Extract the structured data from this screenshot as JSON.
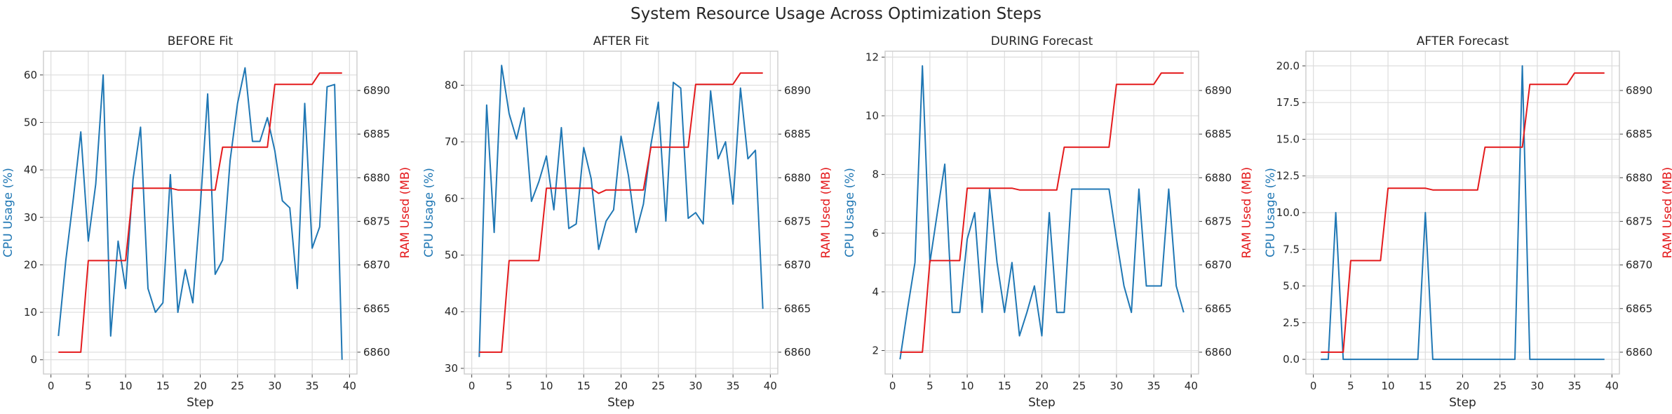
{
  "figure": {
    "title": "System Resource Usage Across Optimization Steps",
    "cpu_color": "#1f77b4",
    "ram_color": "#e41a1c"
  },
  "chart_data": [
    {
      "type": "line",
      "title": "BEFORE Fit",
      "xlabel": "Step",
      "ylabel": "CPU Usage (%)",
      "y2label": "RAM Used (MB)",
      "x": [
        1,
        2,
        3,
        4,
        5,
        6,
        7,
        8,
        9,
        10,
        11,
        12,
        13,
        14,
        15,
        16,
        17,
        18,
        19,
        20,
        21,
        22,
        23,
        24,
        25,
        26,
        27,
        28,
        29,
        30,
        31,
        32,
        33,
        34,
        35,
        36,
        37,
        38,
        39
      ],
      "xlim": [
        -1,
        41
      ],
      "ylim": [
        -3,
        65
      ],
      "y2lim": [
        6857.5,
        6894.5
      ],
      "xticks": [
        0,
        5,
        10,
        15,
        20,
        25,
        30,
        35,
        40
      ],
      "yticks": [
        0,
        10,
        20,
        30,
        40,
        50,
        60
      ],
      "y2ticks": [
        6860,
        6865,
        6870,
        6875,
        6880,
        6885,
        6890
      ],
      "grid": true,
      "series": [
        {
          "axis": "left",
          "color": "#1f77b4",
          "values": [
            5,
            21,
            34,
            48,
            25,
            37,
            60,
            5,
            25,
            15,
            38,
            49,
            15,
            10,
            12,
            39,
            10,
            19,
            12,
            32,
            56,
            18,
            21,
            42,
            54,
            61.5,
            46,
            46,
            51,
            44,
            33.5,
            32,
            15,
            54,
            23.5,
            28,
            57.5,
            58,
            0
          ]
        },
        {
          "axis": "right",
          "color": "#e41a1c",
          "values": [
            6860,
            6860,
            6860,
            6860,
            6870.5,
            6870.5,
            6870.5,
            6870.5,
            6870.5,
            6870.5,
            6878.8,
            6878.8,
            6878.8,
            6878.8,
            6878.8,
            6878.8,
            6878.6,
            6878.6,
            6878.6,
            6878.6,
            6878.6,
            6878.6,
            6883.5,
            6883.5,
            6883.5,
            6883.5,
            6883.5,
            6883.5,
            6883.5,
            6890.7,
            6890.7,
            6890.7,
            6890.7,
            6890.7,
            6890.7,
            6892,
            6892,
            6892,
            6892
          ]
        }
      ]
    },
    {
      "type": "line",
      "title": "AFTER Fit",
      "xlabel": "Step",
      "ylabel": "CPU Usage (%)",
      "y2label": "RAM Used (MB)",
      "x": [
        1,
        2,
        3,
        4,
        5,
        6,
        7,
        8,
        9,
        10,
        11,
        12,
        13,
        14,
        15,
        16,
        17,
        18,
        19,
        20,
        21,
        22,
        23,
        24,
        25,
        26,
        27,
        28,
        29,
        30,
        31,
        32,
        33,
        34,
        35,
        36,
        37,
        38,
        39
      ],
      "xlim": [
        -1,
        41
      ],
      "ylim": [
        29,
        86
      ],
      "y2lim": [
        6857.5,
        6894.5
      ],
      "xticks": [
        0,
        5,
        10,
        15,
        20,
        25,
        30,
        35,
        40
      ],
      "yticks": [
        30,
        40,
        50,
        60,
        70,
        80
      ],
      "y2ticks": [
        6860,
        6865,
        6870,
        6875,
        6880,
        6885,
        6890
      ],
      "grid": true,
      "series": [
        {
          "axis": "left",
          "color": "#1f77b4",
          "values": [
            32,
            76.5,
            54,
            83.5,
            75,
            70.5,
            76,
            59.5,
            63,
            67.5,
            58,
            72.5,
            54.7,
            55.5,
            69,
            63.5,
            51,
            56,
            58,
            71,
            64,
            54,
            59,
            69.5,
            77,
            56,
            80.5,
            79.5,
            56.5,
            57.5,
            55.5,
            79,
            67,
            70,
            59,
            79.5,
            67,
            68.5,
            40.5
          ]
        },
        {
          "axis": "right",
          "color": "#e41a1c",
          "values": [
            6860,
            6860,
            6860,
            6860,
            6870.5,
            6870.5,
            6870.5,
            6870.5,
            6870.5,
            6878.8,
            6878.8,
            6878.8,
            6878.8,
            6878.8,
            6878.8,
            6878.8,
            6878.2,
            6878.6,
            6878.6,
            6878.6,
            6878.6,
            6878.6,
            6878.6,
            6883.5,
            6883.5,
            6883.5,
            6883.5,
            6883.5,
            6883.5,
            6890.7,
            6890.7,
            6890.7,
            6890.7,
            6890.7,
            6890.7,
            6892,
            6892,
            6892,
            6892
          ]
        }
      ]
    },
    {
      "type": "line",
      "title": "DURING Forecast",
      "xlabel": "Step",
      "ylabel": "CPU Usage (%)",
      "y2label": "RAM Used (MB)",
      "x": [
        1,
        2,
        3,
        4,
        5,
        6,
        7,
        8,
        9,
        10,
        11,
        12,
        13,
        14,
        15,
        16,
        17,
        18,
        19,
        20,
        21,
        22,
        23,
        24,
        25,
        26,
        27,
        28,
        29,
        30,
        31,
        32,
        33,
        34,
        35,
        36,
        37,
        38,
        39
      ],
      "xlim": [
        -1,
        41
      ],
      "ylim": [
        1.2,
        12.2
      ],
      "y2lim": [
        6857.5,
        6894.5
      ],
      "xticks": [
        0,
        5,
        10,
        15,
        20,
        25,
        30,
        35,
        40
      ],
      "yticks": [
        2,
        4,
        6,
        8,
        10,
        12
      ],
      "y2ticks": [
        6860,
        6865,
        6870,
        6875,
        6880,
        6885,
        6890
      ],
      "grid": true,
      "series": [
        {
          "axis": "left",
          "color": "#1f77b4",
          "values": [
            1.7,
            3.4,
            5,
            11.7,
            5,
            6.7,
            8.35,
            3.3,
            3.3,
            5.8,
            6.7,
            3.3,
            7.5,
            5,
            3.3,
            5,
            2.5,
            3.3,
            4.2,
            2.5,
            6.7,
            3.3,
            3.3,
            7.5,
            7.5,
            7.5,
            7.5,
            7.5,
            7.5,
            5.8,
            4.2,
            3.3,
            7.5,
            4.2,
            4.2,
            4.2,
            7.5,
            4.2,
            3.3
          ]
        },
        {
          "axis": "right",
          "color": "#e41a1c",
          "values": [
            6860,
            6860,
            6860,
            6860,
            6870.5,
            6870.5,
            6870.5,
            6870.5,
            6870.5,
            6878.8,
            6878.8,
            6878.8,
            6878.8,
            6878.8,
            6878.8,
            6878.8,
            6878.6,
            6878.6,
            6878.6,
            6878.6,
            6878.6,
            6878.6,
            6883.5,
            6883.5,
            6883.5,
            6883.5,
            6883.5,
            6883.5,
            6883.5,
            6890.7,
            6890.7,
            6890.7,
            6890.7,
            6890.7,
            6890.7,
            6892,
            6892,
            6892,
            6892
          ]
        }
      ]
    },
    {
      "type": "line",
      "title": "AFTER Forecast",
      "xlabel": "Step",
      "ylabel": "CPU Usage (%)",
      "y2label": "RAM Used (MB)",
      "x": [
        1,
        2,
        3,
        4,
        5,
        6,
        7,
        8,
        9,
        10,
        11,
        12,
        13,
        14,
        15,
        16,
        17,
        18,
        19,
        20,
        21,
        22,
        23,
        24,
        25,
        26,
        27,
        28,
        29,
        30,
        31,
        32,
        33,
        34,
        35,
        36,
        37,
        38,
        39
      ],
      "xlim": [
        -1,
        41
      ],
      "ylim": [
        -1,
        21
      ],
      "y2lim": [
        6857.5,
        6894.5
      ],
      "xticks": [
        0,
        5,
        10,
        15,
        20,
        25,
        30,
        35,
        40
      ],
      "yticks": [
        0,
        2.5,
        5,
        7.5,
        10,
        12.5,
        15,
        17.5,
        20
      ],
      "yticklabels": [
        "0.0",
        "2.5",
        "5.0",
        "7.5",
        "10.0",
        "12.5",
        "15.0",
        "17.5",
        "20.0"
      ],
      "y2ticks": [
        6860,
        6865,
        6870,
        6875,
        6880,
        6885,
        6890
      ],
      "grid": true,
      "series": [
        {
          "axis": "left",
          "color": "#1f77b4",
          "values": [
            0,
            0,
            10,
            0,
            0,
            0,
            0,
            0,
            0,
            0,
            0,
            0,
            0,
            0,
            10,
            0,
            0,
            0,
            0,
            0,
            0,
            0,
            0,
            0,
            0,
            0,
            0,
            20,
            0,
            0,
            0,
            0,
            0,
            0,
            0,
            0,
            0,
            0,
            0
          ]
        },
        {
          "axis": "right",
          "color": "#e41a1c",
          "values": [
            6860,
            6860,
            6860,
            6860,
            6870.5,
            6870.5,
            6870.5,
            6870.5,
            6870.5,
            6878.8,
            6878.8,
            6878.8,
            6878.8,
            6878.8,
            6878.8,
            6878.6,
            6878.6,
            6878.6,
            6878.6,
            6878.6,
            6878.6,
            6878.6,
            6883.5,
            6883.5,
            6883.5,
            6883.5,
            6883.5,
            6883.5,
            6890.7,
            6890.7,
            6890.7,
            6890.7,
            6890.7,
            6890.7,
            6892,
            6892,
            6892,
            6892,
            6892
          ]
        }
      ]
    }
  ]
}
